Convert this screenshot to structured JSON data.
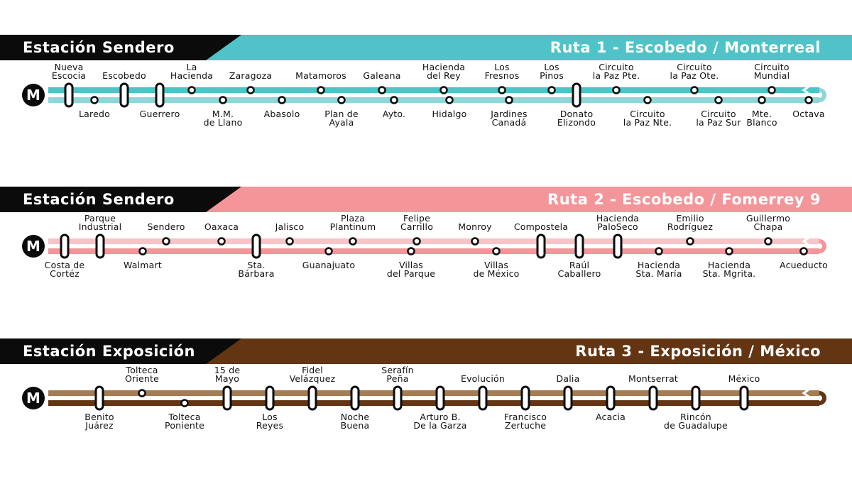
{
  "routes": [
    {
      "station": "Estación Sendero",
      "title": "Ruta 1 - Escobedo / Monterreal",
      "colors": {
        "main": "#4fc3c7",
        "light": "#8fd6d8"
      },
      "metro_badge": "M",
      "stops": [
        {
          "name": "Nueva\nEscocia",
          "side": "top",
          "line": "top",
          "kind": "pill"
        },
        {
          "name": "Laredo",
          "side": "bottom",
          "line": "bottom",
          "kind": "dot"
        },
        {
          "name": "Escobedo",
          "side": "top",
          "line": "top",
          "kind": "pill"
        },
        {
          "name": "Guerrero",
          "side": "bottom",
          "line": "bottom",
          "kind": "pill"
        },
        {
          "name": "La\nHacienda",
          "side": "top",
          "line": "top",
          "kind": "dot"
        },
        {
          "name": "M.M.\nde Llano",
          "side": "bottom",
          "line": "bottom",
          "kind": "dot"
        },
        {
          "name": "Zaragoza",
          "side": "top",
          "line": "top",
          "kind": "dot"
        },
        {
          "name": "Abasolo",
          "side": "bottom",
          "line": "bottom",
          "kind": "dot"
        },
        {
          "name": "Matamoros",
          "side": "top",
          "line": "top",
          "kind": "dot"
        },
        {
          "name": "Plan de\nAyala",
          "side": "bottom",
          "line": "bottom",
          "kind": "dot"
        },
        {
          "name": "Galeana",
          "side": "top",
          "line": "top",
          "kind": "dot"
        },
        {
          "name": "Ayto.",
          "side": "bottom",
          "line": "bottom",
          "kind": "dot"
        },
        {
          "name": "Hacienda\ndel Rey",
          "side": "top",
          "line": "top",
          "kind": "dot"
        },
        {
          "name": "Hidalgo",
          "side": "bottom",
          "line": "bottom",
          "kind": "dot"
        },
        {
          "name": "Los\nFresnos",
          "side": "top",
          "line": "top",
          "kind": "dot"
        },
        {
          "name": "Jardines\nCanadá",
          "side": "bottom",
          "line": "bottom",
          "kind": "dot"
        },
        {
          "name": "Los\nPinos",
          "side": "top",
          "line": "top",
          "kind": "dot"
        },
        {
          "name": "Donato\nElizondo",
          "side": "bottom",
          "line": "bottom",
          "kind": "pill"
        },
        {
          "name": "Circuito\nla Paz Pte.",
          "side": "top",
          "line": "top",
          "kind": "dot"
        },
        {
          "name": "Circuito\nla Paz Nte.",
          "side": "bottom",
          "line": "bottom",
          "kind": "dot"
        },
        {
          "name": "Circuito\nla Paz Ote.",
          "side": "top",
          "line": "top",
          "kind": "dot"
        },
        {
          "name": "Circuito\nla Paz Sur",
          "side": "bottom",
          "line": "bottom",
          "kind": "dot"
        },
        {
          "name": "Circuito\nMundial",
          "side": "top",
          "line": "top",
          "kind": "dot"
        },
        {
          "name": "Mte.\nBlanco",
          "side": "bottom",
          "line": "bottom",
          "kind": "dot"
        },
        {
          "name": "Octava",
          "side": "bottom",
          "line": "bottom",
          "kind": "dot"
        }
      ]
    },
    {
      "station": "Estación Sendero",
      "title": "Ruta 2 - Escobedo / Fomerrey 9",
      "colors": {
        "main": "#f4959a",
        "light": "#f8c4c7"
      },
      "metro_badge": "M",
      "stops": [
        {
          "name": "Costa de\nCortéz",
          "side": "bottom",
          "line": "bottom",
          "kind": "pill"
        },
        {
          "name": "Parque\nIndustrial",
          "side": "top",
          "line": "top",
          "kind": "pill"
        },
        {
          "name": "Walmart",
          "side": "bottom",
          "line": "bottom",
          "kind": "dot"
        },
        {
          "name": "Sendero",
          "side": "top",
          "line": "top",
          "kind": "dot"
        },
        {
          "name": "Oaxaca",
          "side": "top",
          "line": "top",
          "kind": "dot"
        },
        {
          "name": "Sta.\nBárbara",
          "side": "bottom",
          "line": "bottom",
          "kind": "pill"
        },
        {
          "name": "Jalisco",
          "side": "top",
          "line": "top",
          "kind": "dot"
        },
        {
          "name": "Guanajuato",
          "side": "bottom",
          "line": "bottom",
          "kind": "dot"
        },
        {
          "name": "Plaza\nPlantinum",
          "side": "top",
          "line": "top",
          "kind": "dot"
        },
        {
          "name": "Villas\ndel Parque",
          "side": "bottom",
          "line": "bottom",
          "kind": "dot"
        },
        {
          "name": "Felipe\nCarrillo",
          "side": "top",
          "line": "top",
          "kind": "dot"
        },
        {
          "name": "Monroy",
          "side": "top",
          "line": "top",
          "kind": "dot"
        },
        {
          "name": "Villas\nde México",
          "side": "bottom",
          "line": "bottom",
          "kind": "dot"
        },
        {
          "name": "Compostela",
          "side": "top",
          "line": "top",
          "kind": "pill"
        },
        {
          "name": "Raúl\nCaballero",
          "side": "bottom",
          "line": "bottom",
          "kind": "pill"
        },
        {
          "name": "Hacienda\nPaloSeco",
          "side": "top",
          "line": "top",
          "kind": "pill"
        },
        {
          "name": "Hacienda\nSta. María",
          "side": "bottom",
          "line": "bottom",
          "kind": "dot"
        },
        {
          "name": "Emilio\nRodríguez",
          "side": "top",
          "line": "top",
          "kind": "dot"
        },
        {
          "name": "Hacienda\nSta. Mgrita.",
          "side": "bottom",
          "line": "bottom",
          "kind": "dot"
        },
        {
          "name": "Guillermo\nChapa",
          "side": "top",
          "line": "top",
          "kind": "dot"
        },
        {
          "name": "Acueducto",
          "side": "bottom",
          "line": "bottom",
          "kind": "dot"
        }
      ]
    },
    {
      "station": "Estación Exposición",
      "title": "Ruta 3 - Exposición / México",
      "colors": {
        "main": "#633513",
        "light": "#a67c52"
      },
      "metro_badge": "M",
      "stops": [
        {
          "name": "Benito\nJuárez",
          "side": "bottom",
          "line": "both",
          "kind": "pill"
        },
        {
          "name": "Tolteca\nOriente",
          "side": "top",
          "line": "top",
          "kind": "dot"
        },
        {
          "name": "Tolteca\nPoniente",
          "side": "bottom",
          "line": "bottom",
          "kind": "dot"
        },
        {
          "name": "15 de\nMayo",
          "side": "top",
          "line": "both",
          "kind": "pill"
        },
        {
          "name": "Los\nReyes",
          "side": "bottom",
          "line": "both",
          "kind": "pill"
        },
        {
          "name": "Fidel\nVelázquez",
          "side": "top",
          "line": "both",
          "kind": "pill"
        },
        {
          "name": "Noche\nBuena",
          "side": "bottom",
          "line": "both",
          "kind": "pill"
        },
        {
          "name": "Serafín\nPeña",
          "side": "top",
          "line": "both",
          "kind": "pill"
        },
        {
          "name": "Arturo B.\nDe la Garza",
          "side": "bottom",
          "line": "both",
          "kind": "pill"
        },
        {
          "name": "Evolución",
          "side": "top",
          "line": "both",
          "kind": "pill"
        },
        {
          "name": "Francisco\nZertuche",
          "side": "bottom",
          "line": "both",
          "kind": "pill"
        },
        {
          "name": "Dalia",
          "side": "top",
          "line": "both",
          "kind": "pill"
        },
        {
          "name": "Acacia",
          "side": "bottom",
          "line": "both",
          "kind": "pill"
        },
        {
          "name": "Montserrat",
          "side": "top",
          "line": "both",
          "kind": "pill"
        },
        {
          "name": "Rincón\nde Guadalupe",
          "side": "bottom",
          "line": "both",
          "kind": "pill"
        },
        {
          "name": "México",
          "side": "top",
          "line": "both",
          "kind": "pill"
        }
      ]
    }
  ]
}
